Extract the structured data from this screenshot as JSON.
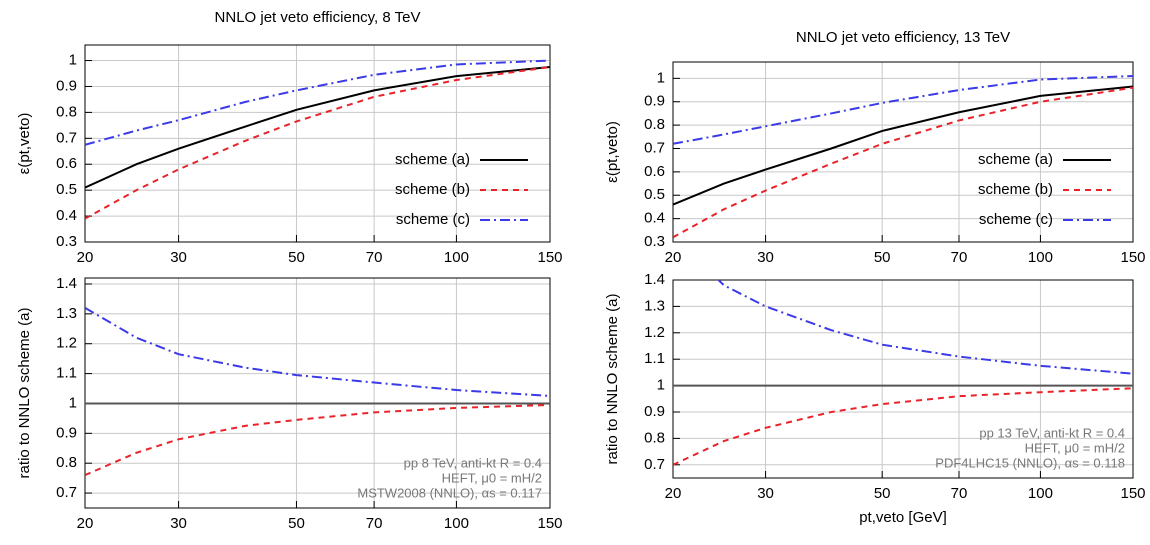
{
  "chart_data": [
    {
      "type": "line",
      "title": "NNLO jet veto efficiency, 8 TeV",
      "y_label": "ε(pt,veto)",
      "log_x": true,
      "grid": true,
      "x": [
        20,
        25,
        30,
        40,
        50,
        70,
        100,
        150
      ],
      "xlim": [
        20,
        150
      ],
      "xticks": [
        20,
        30,
        50,
        70,
        100,
        150
      ],
      "ylim": [
        0.3,
        1.06
      ],
      "yticks": [
        0.3,
        0.4,
        0.5,
        0.6,
        0.7,
        0.8,
        0.9,
        1
      ],
      "series": [
        {
          "name": "scheme (a)",
          "color": "#000000",
          "dash": "solid",
          "values": [
            0.51,
            0.6,
            0.66,
            0.745,
            0.81,
            0.885,
            0.94,
            0.975
          ]
        },
        {
          "name": "scheme (b)",
          "color": "#e8232a",
          "dash": "dashed",
          "values": [
            0.39,
            0.5,
            0.58,
            0.69,
            0.765,
            0.86,
            0.925,
            0.975
          ]
        },
        {
          "name": "scheme (c)",
          "color": "#3a3ae8",
          "dash": "dashdot",
          "values": [
            0.675,
            0.73,
            0.77,
            0.84,
            0.885,
            0.945,
            0.985,
            1.0
          ]
        }
      ]
    },
    {
      "type": "line",
      "y_label": "ratio to NNLO scheme (a)",
      "x_label": "pt,veto [GeV]",
      "log_x": true,
      "grid": true,
      "annotations": [
        "pp 8 TeV, anti-kt R = 0.4",
        "HEFT, μ0 = mH/2",
        "MSTW2008 (NNLO), αs = 0.117"
      ],
      "x": [
        20,
        25,
        30,
        40,
        50,
        70,
        100,
        150
      ],
      "xlim": [
        20,
        150
      ],
      "xticks": [
        20,
        30,
        50,
        70,
        100,
        150
      ],
      "ylim": [
        0.65,
        1.42
      ],
      "yticks": [
        0.7,
        0.8,
        0.9,
        1,
        1.1,
        1.2,
        1.3,
        1.4
      ],
      "series": [
        {
          "color": "#555555",
          "dash": "solid",
          "values": [
            1,
            1,
            1,
            1,
            1,
            1,
            1,
            1
          ]
        },
        {
          "color": "#e8232a",
          "dash": "dashed",
          "values": [
            0.76,
            0.835,
            0.88,
            0.925,
            0.945,
            0.97,
            0.985,
            0.995
          ]
        },
        {
          "color": "#3a3ae8",
          "dash": "dashdot",
          "values": [
            1.32,
            1.22,
            1.165,
            1.12,
            1.095,
            1.07,
            1.045,
            1.025
          ]
        }
      ]
    },
    {
      "type": "line",
      "title": "NNLO jet veto efficiency, 13 TeV",
      "y_label": "ε(pt,veto)",
      "log_x": true,
      "grid": true,
      "x": [
        20,
        25,
        30,
        40,
        50,
        70,
        100,
        150
      ],
      "xlim": [
        20,
        150
      ],
      "xticks": [
        20,
        30,
        50,
        70,
        100,
        150
      ],
      "ylim": [
        0.3,
        1.07
      ],
      "yticks": [
        0.3,
        0.4,
        0.5,
        0.6,
        0.7,
        0.8,
        0.9,
        1
      ],
      "series": [
        {
          "name": "scheme (a)",
          "color": "#000000",
          "dash": "solid",
          "values": [
            0.46,
            0.55,
            0.61,
            0.7,
            0.775,
            0.855,
            0.925,
            0.965
          ]
        },
        {
          "name": "scheme (b)",
          "color": "#e8232a",
          "dash": "dashed",
          "values": [
            0.32,
            0.44,
            0.52,
            0.635,
            0.72,
            0.82,
            0.9,
            0.96
          ]
        },
        {
          "name": "scheme (c)",
          "color": "#3a3ae8",
          "dash": "dashdot",
          "values": [
            0.72,
            0.76,
            0.795,
            0.85,
            0.895,
            0.95,
            0.995,
            1.01
          ]
        }
      ]
    },
    {
      "type": "line",
      "y_label": "ratio to NNLO scheme (a)",
      "x_label": "pt,veto [GeV]",
      "log_x": true,
      "grid": true,
      "annotations": [
        "pp 13 TeV, anti-kt R = 0.4",
        "HEFT, μ0 = mH/2",
        "PDF4LHC15 (NNLO), αs = 0.118"
      ],
      "x": [
        20,
        25,
        30,
        40,
        50,
        70,
        100,
        150
      ],
      "xlim": [
        20,
        150
      ],
      "xticks": [
        20,
        30,
        50,
        70,
        100,
        150
      ],
      "ylim": [
        0.65,
        1.4
      ],
      "yticks": [
        0.7,
        0.8,
        0.9,
        1,
        1.1,
        1.2,
        1.3,
        1.4
      ],
      "series": [
        {
          "color": "#555555",
          "dash": "solid",
          "values": [
            1,
            1,
            1,
            1,
            1,
            1,
            1,
            1
          ]
        },
        {
          "color": "#e8232a",
          "dash": "dashed",
          "values": [
            0.7,
            0.79,
            0.84,
            0.9,
            0.93,
            0.96,
            0.975,
            0.99
          ]
        },
        {
          "color": "#3a3ae8",
          "dash": "dashdot",
          "values": [
            1.565,
            1.38,
            1.3,
            1.21,
            1.155,
            1.11,
            1.075,
            1.045
          ]
        }
      ]
    }
  ]
}
